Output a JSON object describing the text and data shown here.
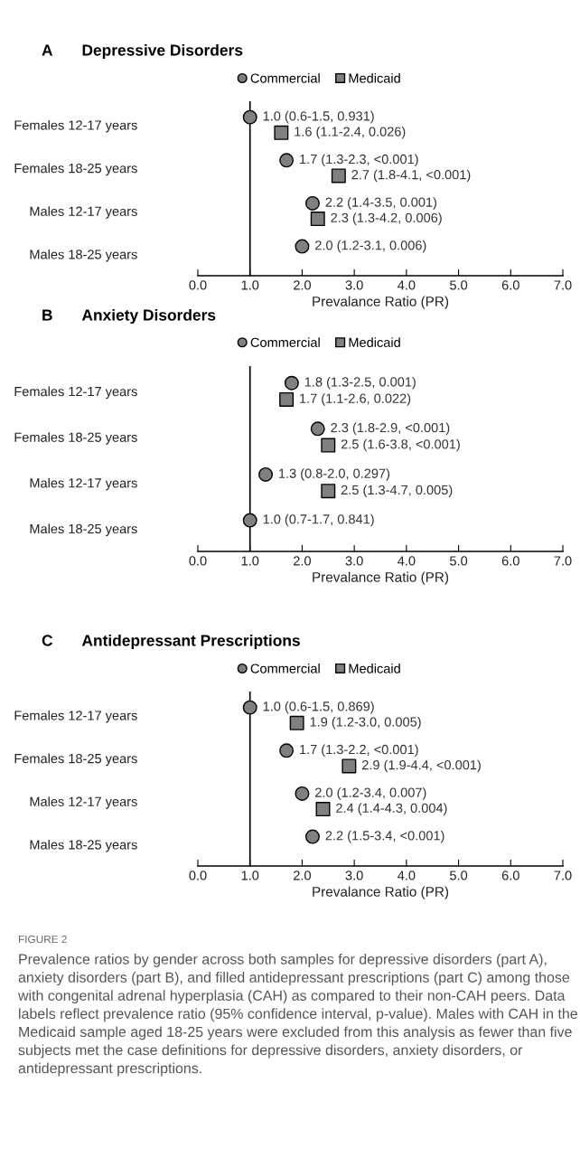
{
  "chart_data": [
    {
      "type": "scatter",
      "orientation": "horizontal",
      "title": "Depressive Disorders",
      "annotations": [
        "A"
      ],
      "xlabel": "Prevalance Ratio (PR)",
      "categories": [
        "Females 12-17 years",
        "Females 18-25 years",
        "Males 12-17 years",
        "Males 18-25 years"
      ],
      "series": [
        {
          "name": "Commercial",
          "color": "#808080",
          "marker": "circle",
          "values": [
            1.0,
            1.7,
            2.2,
            2.0
          ],
          "value_labels": [
            "1.0 (0.6-1.5, 0.931)",
            "1.7 (1.3-2.3, <0.001)",
            "2.2 (1.4-3.5, 0.001)",
            "2.0 (1.2-3.1, 0.006)"
          ]
        },
        {
          "name": "Medicaid",
          "color": "#808080",
          "marker": "square",
          "values": [
            1.6,
            2.7,
            2.3,
            null
          ],
          "value_labels": [
            "1.6 (1.1-2.4, 0.026)",
            "2.7 (1.8-4.1, <0.001)",
            "2.3 (1.3-4.2, 0.006)",
            null
          ]
        }
      ],
      "xlim": [
        0,
        7
      ],
      "xticks": [
        {
          "value": 0,
          "label": "0.0"
        },
        {
          "value": 1,
          "label": "1.0"
        },
        {
          "value": 2,
          "label": "2.0"
        },
        {
          "value": 3,
          "label": "3.0"
        },
        {
          "value": 4,
          "label": "4.0"
        },
        {
          "value": 5,
          "label": "5.0"
        },
        {
          "value": 6,
          "label": "6.0"
        },
        {
          "value": 7,
          "label": "7.0"
        }
      ],
      "ref_lines": [
        {
          "axis": "x",
          "value": 1,
          "color": "#000000"
        }
      ],
      "legend": "top",
      "grid": false
    },
    {
      "type": "scatter",
      "orientation": "horizontal",
      "title": "Anxiety Disorders",
      "annotations": [
        "B"
      ],
      "xlabel": "Prevalance Ratio (PR)",
      "categories": [
        "Females 12-17 years",
        "Females 18-25 years",
        "Males 12-17 years",
        "Males 18-25 years"
      ],
      "series": [
        {
          "name": "Commercial",
          "color": "#808080",
          "marker": "circle",
          "values": [
            1.8,
            2.3,
            1.3,
            1.0
          ],
          "value_labels": [
            "1.8 (1.3-2.5, 0.001)",
            "2.3 (1.8-2.9, <0.001)",
            "1.3 (0.8-2.0, 0.297)",
            "1.0 (0.7-1.7, 0.841)"
          ]
        },
        {
          "name": "Medicaid",
          "color": "#808080",
          "marker": "square",
          "values": [
            1.7,
            2.5,
            2.5,
            null
          ],
          "value_labels": [
            "1.7 (1.1-2.6, 0.022)",
            "2.5 (1.6-3.8, <0.001)",
            "2.5 (1.3-4.7, 0.005)",
            null
          ]
        }
      ],
      "xlim": [
        0,
        7
      ],
      "xticks": [
        {
          "value": 0,
          "label": "0.0"
        },
        {
          "value": 1,
          "label": "1.0"
        },
        {
          "value": 2,
          "label": "2.0"
        },
        {
          "value": 3,
          "label": "3.0"
        },
        {
          "value": 4,
          "label": "4.0"
        },
        {
          "value": 5,
          "label": "5.0"
        },
        {
          "value": 6,
          "label": "6.0"
        },
        {
          "value": 7,
          "label": "7.0"
        }
      ],
      "ref_lines": [
        {
          "axis": "x",
          "value": 1,
          "color": "#000000"
        }
      ],
      "legend": "top",
      "grid": false
    },
    {
      "type": "scatter",
      "orientation": "horizontal",
      "title": "Antidepressant Prescriptions",
      "xlabel": "Prevalance Ratio (PR)",
      "annotations": [
        "C",
        "FIGURE 2",
        "Prevalence ratios by gender across both samples for depressive disorders (part A), anxiety disorders (part B), and filled antidepressant prescriptions (part C) among those with congenital adrenal hyperplasia (CAH) as compared to their non-CAH peers. Data labels reflect prevalence ratio (95% confidence interval, p-value). Males with CAH in the Medicaid sample aged 18-25 years were excluded from this analysis as fewer than five subjects met the case definitions for depressive disorders, anxiety disorders, or antidepressant prescriptions."
      ],
      "categories": [
        "Females 12-17 years",
        "Females 18-25 years",
        "Males 12-17 years",
        "Males 18-25 years"
      ],
      "series": [
        {
          "name": "Commercial",
          "color": "#808080",
          "marker": "circle",
          "values": [
            1.0,
            1.7,
            2.0,
            2.2
          ],
          "value_labels": [
            "1.0 (0.6-1.5, 0.869)",
            "1.7 (1.3-2.2, <0.001)",
            "2.0 (1.2-3.4, 0.007)",
            "2.2 (1.5-3.4, <0.001)"
          ]
        },
        {
          "name": "Medicaid",
          "color": "#808080",
          "marker": "square",
          "values": [
            1.9,
            2.9,
            2.4,
            null
          ],
          "value_labels": [
            "1.9 (1.2-3.0, 0.005)",
            "2.9 (1.9-4.4, <0.001)",
            "2.4 (1.4-4.3, 0.004)",
            null
          ]
        }
      ],
      "xlim": [
        0,
        7
      ],
      "xticks": [
        {
          "value": 0,
          "label": "0.0"
        },
        {
          "value": 1,
          "label": "1.0"
        },
        {
          "value": 2,
          "label": "2.0"
        },
        {
          "value": 3,
          "label": "3.0"
        },
        {
          "value": 4,
          "label": "4.0"
        },
        {
          "value": 5,
          "label": "5.0"
        },
        {
          "value": 6,
          "label": "6.0"
        },
        {
          "value": 7,
          "label": "7.0"
        }
      ],
      "ref_lines": [
        {
          "axis": "x",
          "value": 1,
          "color": "#000000"
        }
      ],
      "legend": "top",
      "grid": false
    }
  ]
}
